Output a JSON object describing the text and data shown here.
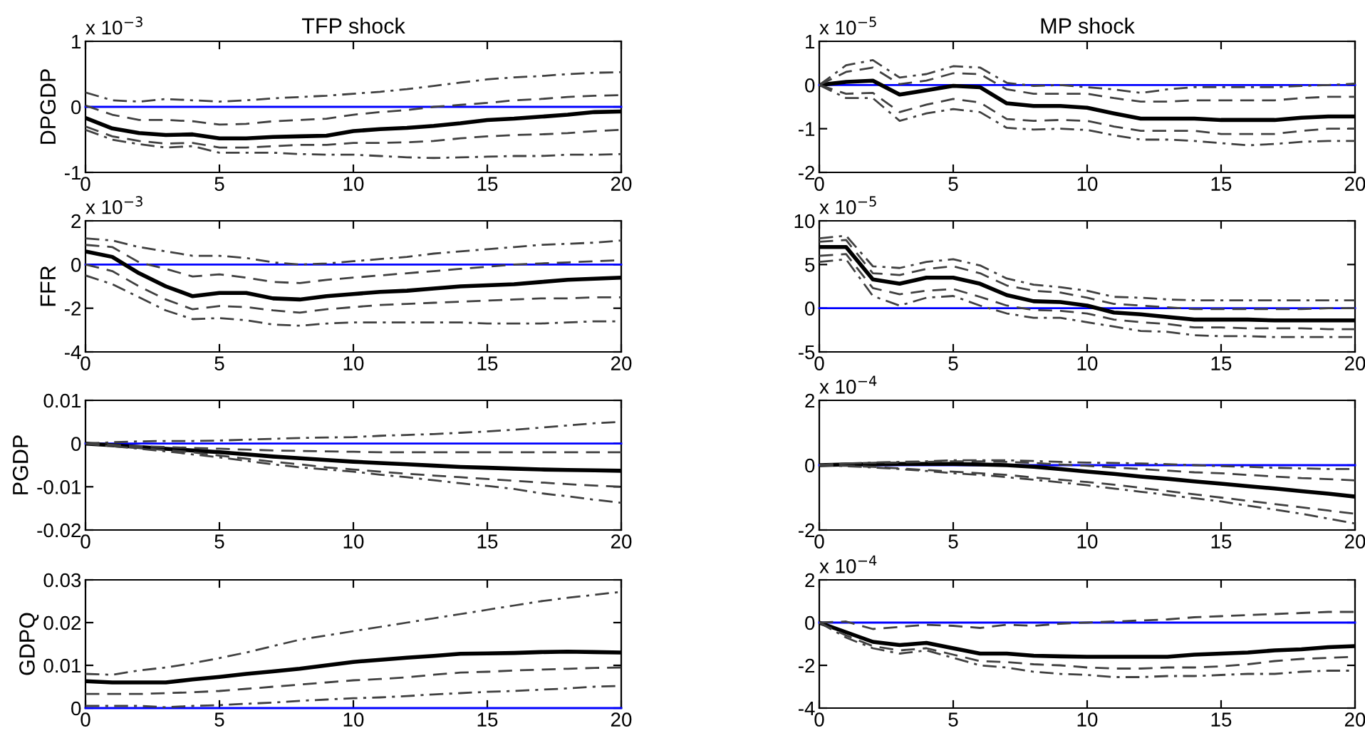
{
  "chart_data": [
    {
      "type": "line",
      "title": "TFP shock",
      "ylabel": "DPGDP",
      "annotations": [
        "x 10$^{−3}$"
      ],
      "x": [
        0,
        1,
        2,
        3,
        4,
        5,
        6,
        7,
        8,
        9,
        10,
        11,
        12,
        13,
        14,
        15,
        16,
        17,
        18,
        19,
        20
      ],
      "xlim": [
        0,
        20
      ],
      "xticks": [
        0,
        5,
        10,
        15,
        20
      ],
      "ylim": [
        -1,
        1
      ],
      "yticks": [
        -1,
        0,
        1
      ],
      "grid": false,
      "ref_lines": [
        {
          "axis": "y",
          "value": 0,
          "color": "#0000ff"
        }
      ],
      "series": [
        {
          "color": "#000000",
          "line_style": "solid",
          "values": [
            -0.17,
            -0.33,
            -0.4,
            -0.43,
            -0.42,
            -0.48,
            -0.48,
            -0.46,
            -0.45,
            -0.44,
            -0.37,
            -0.34,
            -0.32,
            -0.29,
            -0.25,
            -0.2,
            -0.18,
            -0.15,
            -0.12,
            -0.08,
            -0.07
          ]
        },
        {
          "color": "#404040",
          "line_style": "dashed",
          "values": [
            0.02,
            -0.12,
            -0.2,
            -0.2,
            -0.22,
            -0.27,
            -0.26,
            -0.22,
            -0.2,
            -0.18,
            -0.12,
            -0.08,
            -0.05,
            0.0,
            0.03,
            0.06,
            0.1,
            0.12,
            0.15,
            0.17,
            0.18
          ]
        },
        {
          "color": "#404040",
          "line_style": "dashed",
          "values": [
            -0.3,
            -0.45,
            -0.52,
            -0.56,
            -0.55,
            -0.62,
            -0.62,
            -0.6,
            -0.58,
            -0.58,
            -0.55,
            -0.55,
            -0.54,
            -0.52,
            -0.48,
            -0.45,
            -0.43,
            -0.42,
            -0.4,
            -0.37,
            -0.35
          ]
        },
        {
          "color": "#404040",
          "line_style": "dashdot",
          "values": [
            0.22,
            0.1,
            0.08,
            0.12,
            0.1,
            0.08,
            0.1,
            0.13,
            0.15,
            0.17,
            0.2,
            0.23,
            0.27,
            0.32,
            0.37,
            0.42,
            0.45,
            0.47,
            0.5,
            0.52,
            0.53
          ]
        },
        {
          "color": "#404040",
          "line_style": "dashdot",
          "values": [
            -0.35,
            -0.5,
            -0.57,
            -0.62,
            -0.6,
            -0.7,
            -0.7,
            -0.7,
            -0.72,
            -0.73,
            -0.73,
            -0.75,
            -0.77,
            -0.78,
            -0.77,
            -0.76,
            -0.75,
            -0.75,
            -0.73,
            -0.73,
            -0.72
          ]
        }
      ]
    },
    {
      "type": "line",
      "title": "MP shock",
      "annotations": [
        "x 10$^{−5}$"
      ],
      "x": [
        0,
        1,
        2,
        3,
        4,
        5,
        6,
        7,
        8,
        9,
        10,
        11,
        12,
        13,
        14,
        15,
        16,
        17,
        18,
        19,
        20
      ],
      "xlim": [
        0,
        20
      ],
      "xticks": [
        0,
        5,
        10,
        15,
        20
      ],
      "ylim": [
        -2,
        1
      ],
      "yticks": [
        -2,
        -1,
        0,
        1
      ],
      "grid": false,
      "ref_lines": [
        {
          "axis": "y",
          "value": 0,
          "color": "#0000ff"
        }
      ],
      "series": [
        {
          "color": "#000000",
          "line_style": "solid",
          "values": [
            0,
            0.07,
            0.1,
            -0.22,
            -0.12,
            -0.02,
            -0.05,
            -0.42,
            -0.48,
            -0.48,
            -0.52,
            -0.65,
            -0.77,
            -0.77,
            -0.77,
            -0.8,
            -0.8,
            -0.8,
            -0.75,
            -0.72,
            -0.72
          ]
        },
        {
          "color": "#404040",
          "line_style": "dashed",
          "values": [
            0,
            0.3,
            0.4,
            0.02,
            0.1,
            0.27,
            0.25,
            -0.1,
            -0.2,
            -0.2,
            -0.2,
            -0.3,
            -0.38,
            -0.38,
            -0.35,
            -0.35,
            -0.35,
            -0.35,
            -0.3,
            -0.27,
            -0.27
          ]
        },
        {
          "color": "#404040",
          "line_style": "dashed",
          "values": [
            0,
            -0.2,
            -0.18,
            -0.62,
            -0.45,
            -0.32,
            -0.4,
            -0.78,
            -0.82,
            -0.8,
            -0.82,
            -0.95,
            -1.05,
            -1.05,
            -1.05,
            -1.12,
            -1.12,
            -1.12,
            -1.05,
            -1.0,
            -1.0
          ]
        },
        {
          "color": "#404040",
          "line_style": "dashdot",
          "values": [
            0,
            0.45,
            0.57,
            0.17,
            0.25,
            0.43,
            0.4,
            0.05,
            -0.02,
            0.0,
            -0.05,
            -0.1,
            -0.18,
            -0.1,
            -0.05,
            -0.05,
            -0.05,
            -0.05,
            -0.02,
            0.0,
            0.03
          ]
        },
        {
          "color": "#404040",
          "line_style": "dashdot",
          "values": [
            0,
            -0.3,
            -0.3,
            -0.82,
            -0.65,
            -0.55,
            -0.62,
            -0.98,
            -1.02,
            -1.0,
            -1.03,
            -1.15,
            -1.25,
            -1.25,
            -1.28,
            -1.33,
            -1.38,
            -1.35,
            -1.3,
            -1.28,
            -1.28
          ]
        }
      ]
    },
    {
      "type": "line",
      "ylabel": "FFR",
      "annotations": [
        "x 10$^{−3}$"
      ],
      "x": [
        0,
        1,
        2,
        3,
        4,
        5,
        6,
        7,
        8,
        9,
        10,
        11,
        12,
        13,
        14,
        15,
        16,
        17,
        18,
        19,
        20
      ],
      "xlim": [
        0,
        20
      ],
      "xticks": [
        0,
        5,
        10,
        15,
        20
      ],
      "ylim": [
        -4,
        2
      ],
      "yticks": [
        -4,
        -2,
        0,
        2
      ],
      "grid": false,
      "ref_lines": [
        {
          "axis": "y",
          "value": 0,
          "color": "#0000ff"
        }
      ],
      "series": [
        {
          "color": "#000000",
          "line_style": "solid",
          "values": [
            0.6,
            0.35,
            -0.4,
            -1.0,
            -1.45,
            -1.3,
            -1.3,
            -1.55,
            -1.6,
            -1.45,
            -1.35,
            -1.25,
            -1.2,
            -1.1,
            -1.0,
            -0.95,
            -0.9,
            -0.8,
            -0.7,
            -0.65,
            -0.6
          ]
        },
        {
          "color": "#404040",
          "line_style": "dashed",
          "values": [
            0.9,
            0.8,
            0.1,
            -0.2,
            -0.55,
            -0.45,
            -0.6,
            -0.8,
            -0.85,
            -0.7,
            -0.6,
            -0.5,
            -0.4,
            -0.3,
            -0.2,
            -0.1,
            0.0,
            0.05,
            0.1,
            0.15,
            0.2
          ]
        },
        {
          "color": "#404040",
          "line_style": "dashed",
          "values": [
            0.0,
            -0.3,
            -1.0,
            -1.6,
            -2.05,
            -1.9,
            -1.95,
            -2.1,
            -2.2,
            -2.05,
            -1.95,
            -1.85,
            -1.8,
            -1.75,
            -1.7,
            -1.65,
            -1.6,
            -1.55,
            -1.55,
            -1.5,
            -1.5
          ]
        },
        {
          "color": "#404040",
          "line_style": "dashdot",
          "values": [
            1.2,
            1.1,
            0.8,
            0.6,
            0.4,
            0.4,
            0.3,
            0.1,
            0.0,
            0.05,
            0.15,
            0.25,
            0.35,
            0.5,
            0.6,
            0.7,
            0.8,
            0.9,
            0.95,
            1.0,
            1.1
          ]
        },
        {
          "color": "#404040",
          "line_style": "dashdot",
          "values": [
            -0.5,
            -0.9,
            -1.5,
            -2.1,
            -2.5,
            -2.45,
            -2.55,
            -2.75,
            -2.8,
            -2.7,
            -2.65,
            -2.65,
            -2.65,
            -2.65,
            -2.65,
            -2.7,
            -2.7,
            -2.7,
            -2.65,
            -2.6,
            -2.6
          ]
        }
      ]
    },
    {
      "type": "line",
      "annotations": [
        "x 10$^{−5}$"
      ],
      "x": [
        0,
        1,
        2,
        3,
        4,
        5,
        6,
        7,
        8,
        9,
        10,
        11,
        12,
        13,
        14,
        15,
        16,
        17,
        18,
        19,
        20
      ],
      "xlim": [
        0,
        20
      ],
      "xticks": [
        0,
        5,
        10,
        15,
        20
      ],
      "ylim": [
        -5,
        10
      ],
      "yticks": [
        -5,
        0,
        5,
        10
      ],
      "grid": false,
      "ref_lines": [
        {
          "axis": "y",
          "value": 0,
          "color": "#0000ff"
        }
      ],
      "series": [
        {
          "color": "#000000",
          "line_style": "solid",
          "values": [
            7,
            7,
            3.3,
            2.8,
            3.5,
            3.5,
            2.8,
            1.5,
            0.8,
            0.7,
            0.3,
            -0.5,
            -0.7,
            -1.0,
            -1.3,
            -1.3,
            -1.3,
            -1.4,
            -1.4,
            -1.4,
            -1.4
          ]
        },
        {
          "color": "#404040",
          "line_style": "dashed",
          "values": [
            7.6,
            7.8,
            4.0,
            3.8,
            4.5,
            4.8,
            4.0,
            2.6,
            2.0,
            1.8,
            1.2,
            0.5,
            0.3,
            0.1,
            -0.1,
            -0.1,
            -0.1,
            -0.1,
            -0.1,
            0.0,
            0.0
          ]
        },
        {
          "color": "#404040",
          "line_style": "dashed",
          "values": [
            6.0,
            6.2,
            2.3,
            1.6,
            2.0,
            2.2,
            1.3,
            0.3,
            -0.2,
            -0.3,
            -0.6,
            -1.3,
            -1.6,
            -1.8,
            -2.2,
            -2.2,
            -2.3,
            -2.3,
            -2.3,
            -2.4,
            -2.4
          ]
        },
        {
          "color": "#404040",
          "line_style": "dashdot",
          "values": [
            8.0,
            8.3,
            4.8,
            4.6,
            5.3,
            5.6,
            4.9,
            3.4,
            2.7,
            2.4,
            2.0,
            1.3,
            1.2,
            1.0,
            0.9,
            0.9,
            0.9,
            0.9,
            0.9,
            0.9,
            0.9
          ]
        },
        {
          "color": "#404040",
          "line_style": "dashdot",
          "values": [
            5.3,
            5.6,
            1.4,
            0.3,
            1.2,
            1.4,
            0.3,
            -0.6,
            -1.1,
            -1.1,
            -1.6,
            -2.1,
            -2.6,
            -2.7,
            -3.1,
            -3.2,
            -3.2,
            -3.3,
            -3.3,
            -3.3,
            -3.3
          ]
        }
      ]
    },
    {
      "type": "line",
      "ylabel": "PGDP",
      "x": [
        0,
        1,
        2,
        3,
        4,
        5,
        6,
        7,
        8,
        9,
        10,
        11,
        12,
        13,
        14,
        15,
        16,
        17,
        18,
        19,
        20
      ],
      "xlim": [
        0,
        20
      ],
      "xticks": [
        0,
        5,
        10,
        15,
        20
      ],
      "ylim": [
        -0.02,
        0.01
      ],
      "yticks": [
        -0.02,
        -0.01,
        0,
        0.01
      ],
      "grid": false,
      "ref_lines": [
        {
          "axis": "y",
          "value": 0,
          "color": "#0000ff"
        }
      ],
      "series": [
        {
          "color": "#000000",
          "line_style": "solid",
          "values": [
            0,
            -0.0004,
            -0.0008,
            -0.0012,
            -0.0016,
            -0.002,
            -0.0025,
            -0.003,
            -0.0034,
            -0.0038,
            -0.0042,
            -0.0045,
            -0.0048,
            -0.0051,
            -0.0054,
            -0.0056,
            -0.0058,
            -0.006,
            -0.0061,
            -0.0062,
            -0.0063
          ]
        },
        {
          "color": "#404040",
          "line_style": "dashed",
          "values": [
            0,
            -0.0003,
            -0.0006,
            -0.0008,
            -0.001,
            -0.0012,
            -0.0014,
            -0.0016,
            -0.0017,
            -0.0018,
            -0.0019,
            -0.002,
            -0.002,
            -0.002,
            -0.002,
            -0.002,
            -0.002,
            -0.002,
            -0.002,
            -0.002,
            -0.002
          ]
        },
        {
          "color": "#404040",
          "line_style": "dashed",
          "values": [
            0,
            -0.0005,
            -0.001,
            -0.0015,
            -0.002,
            -0.0028,
            -0.0035,
            -0.0042,
            -0.0048,
            -0.0055,
            -0.006,
            -0.0065,
            -0.007,
            -0.0074,
            -0.0078,
            -0.0082,
            -0.0086,
            -0.009,
            -0.0094,
            -0.0097,
            -0.01
          ]
        },
        {
          "color": "#404040",
          "line_style": "dashdot",
          "values": [
            0,
            0.0003,
            0.0005,
            0.0006,
            0.0006,
            0.0007,
            0.0009,
            0.0011,
            0.0013,
            0.0014,
            0.0015,
            0.0018,
            0.002,
            0.0022,
            0.0025,
            0.0028,
            0.0032,
            0.0037,
            0.0042,
            0.0047,
            0.005
          ]
        },
        {
          "color": "#404040",
          "line_style": "dashdot",
          "values": [
            0,
            -0.0006,
            -0.0012,
            -0.0018,
            -0.0025,
            -0.0032,
            -0.004,
            -0.0048,
            -0.0055,
            -0.006,
            -0.0065,
            -0.0072,
            -0.0078,
            -0.0085,
            -0.0092,
            -0.0098,
            -0.0105,
            -0.0115,
            -0.0122,
            -0.013,
            -0.0137
          ]
        }
      ]
    },
    {
      "type": "line",
      "annotations": [
        "x 10$^{−4}$"
      ],
      "x": [
        0,
        1,
        2,
        3,
        4,
        5,
        6,
        7,
        8,
        9,
        10,
        11,
        12,
        13,
        14,
        15,
        16,
        17,
        18,
        19,
        20
      ],
      "xlim": [
        0,
        20
      ],
      "xticks": [
        0,
        5,
        10,
        15,
        20
      ],
      "ylim": [
        -2,
        2
      ],
      "yticks": [
        -2,
        0,
        2
      ],
      "grid": false,
      "ref_lines": [
        {
          "axis": "y",
          "value": 0,
          "color": "#0000ff"
        }
      ],
      "series": [
        {
          "color": "#000000",
          "line_style": "solid",
          "values": [
            0,
            0.02,
            0.03,
            0.04,
            0.04,
            0.04,
            0.02,
            0.0,
            -0.05,
            -0.12,
            -0.2,
            -0.27,
            -0.35,
            -0.42,
            -0.5,
            -0.57,
            -0.65,
            -0.72,
            -0.8,
            -0.88,
            -0.97
          ]
        },
        {
          "color": "#404040",
          "line_style": "dashed",
          "values": [
            0,
            0.05,
            0.07,
            0.08,
            0.1,
            0.12,
            0.12,
            0.1,
            0.07,
            0.02,
            -0.02,
            -0.07,
            -0.12,
            -0.17,
            -0.22,
            -0.25,
            -0.3,
            -0.35,
            -0.4,
            -0.43,
            -0.47
          ]
        },
        {
          "color": "#404040",
          "line_style": "dashed",
          "values": [
            0,
            -0.02,
            -0.05,
            -0.1,
            -0.15,
            -0.2,
            -0.25,
            -0.3,
            -0.38,
            -0.45,
            -0.52,
            -0.6,
            -0.7,
            -0.8,
            -0.9,
            -1.0,
            -1.1,
            -1.2,
            -1.3,
            -1.4,
            -1.5
          ]
        },
        {
          "color": "#404040",
          "line_style": "dashdot",
          "values": [
            0,
            0.05,
            0.08,
            0.1,
            0.12,
            0.15,
            0.15,
            0.15,
            0.13,
            0.1,
            0.08,
            0.07,
            0.05,
            0.03,
            0.0,
            -0.03,
            -0.05,
            -0.08,
            -0.1,
            -0.12,
            -0.12
          ]
        },
        {
          "color": "#404040",
          "line_style": "dashdot",
          "values": [
            0,
            -0.03,
            -0.07,
            -0.12,
            -0.18,
            -0.25,
            -0.3,
            -0.37,
            -0.45,
            -0.53,
            -0.62,
            -0.72,
            -0.82,
            -0.92,
            -1.02,
            -1.12,
            -1.25,
            -1.37,
            -1.5,
            -1.65,
            -1.8
          ]
        }
      ]
    },
    {
      "type": "line",
      "ylabel": "GDPQ",
      "x": [
        0,
        1,
        2,
        3,
        4,
        5,
        6,
        7,
        8,
        9,
        10,
        11,
        12,
        13,
        14,
        15,
        16,
        17,
        18,
        19,
        20
      ],
      "xlim": [
        0,
        20
      ],
      "xticks": [
        0,
        5,
        10,
        15,
        20
      ],
      "ylim": [
        0,
        0.03
      ],
      "yticks": [
        0,
        0.01,
        0.02,
        0.03
      ],
      "grid": false,
      "ref_lines": [
        {
          "axis": "y",
          "value": 0,
          "color": "#0000ff"
        }
      ],
      "series": [
        {
          "color": "#000000",
          "line_style": "solid",
          "values": [
            0.0063,
            0.006,
            0.006,
            0.006,
            0.0067,
            0.0073,
            0.008,
            0.0086,
            0.0092,
            0.01,
            0.0108,
            0.0113,
            0.0118,
            0.0122,
            0.0127,
            0.0128,
            0.0129,
            0.0131,
            0.0132,
            0.0131,
            0.013
          ]
        },
        {
          "color": "#404040",
          "line_style": "dashdot",
          "values": [
            0.008,
            0.0078,
            0.0088,
            0.0095,
            0.0105,
            0.0117,
            0.013,
            0.0145,
            0.016,
            0.017,
            0.018,
            0.019,
            0.02,
            0.021,
            0.022,
            0.023,
            0.024,
            0.025,
            0.0258,
            0.0265,
            0.0272
          ]
        },
        {
          "color": "#404040",
          "line_style": "dashed",
          "values": [
            0.0033,
            0.0033,
            0.0033,
            0.0035,
            0.0037,
            0.004,
            0.0045,
            0.005,
            0.0055,
            0.006,
            0.0065,
            0.0068,
            0.0072,
            0.0078,
            0.0083,
            0.0085,
            0.0088,
            0.009,
            0.0092,
            0.0094,
            0.0095
          ]
        },
        {
          "color": "#404040",
          "line_style": "dashdot",
          "values": [
            0.0005,
            0.0005,
            0.0005,
            0.0002,
            0.0005,
            0.0007,
            0.001,
            0.0013,
            0.0017,
            0.002,
            0.0023,
            0.0025,
            0.0028,
            0.0032,
            0.0035,
            0.0038,
            0.004,
            0.0043,
            0.0046,
            0.005,
            0.0052
          ]
        }
      ]
    },
    {
      "type": "line",
      "annotations": [
        "x 10$^{−4}$"
      ],
      "x": [
        0,
        1,
        2,
        3,
        4,
        5,
        6,
        7,
        8,
        9,
        10,
        11,
        12,
        13,
        14,
        15,
        16,
        17,
        18,
        19,
        20
      ],
      "xlim": [
        0,
        20
      ],
      "xticks": [
        0,
        5,
        10,
        15,
        20
      ],
      "ylim": [
        -4,
        2
      ],
      "yticks": [
        -4,
        -2,
        0,
        2
      ],
      "grid": false,
      "ref_lines": [
        {
          "axis": "y",
          "value": 0,
          "color": "#0000ff"
        }
      ],
      "series": [
        {
          "color": "#000000",
          "line_style": "solid",
          "values": [
            0,
            -0.45,
            -0.9,
            -1.05,
            -0.95,
            -1.2,
            -1.45,
            -1.45,
            -1.55,
            -1.58,
            -1.6,
            -1.6,
            -1.6,
            -1.6,
            -1.5,
            -1.45,
            -1.4,
            -1.3,
            -1.25,
            -1.15,
            -1.1
          ]
        },
        {
          "color": "#404040",
          "line_style": "dashed",
          "values": [
            0,
            0.05,
            -0.3,
            -0.2,
            -0.1,
            -0.15,
            -0.25,
            -0.1,
            -0.15,
            -0.05,
            0.0,
            0.05,
            0.1,
            0.15,
            0.25,
            0.3,
            0.35,
            0.4,
            0.45,
            0.5,
            0.5
          ]
        },
        {
          "color": "#404040",
          "line_style": "dashed",
          "values": [
            0,
            -0.6,
            -1.1,
            -1.3,
            -1.2,
            -1.5,
            -1.8,
            -1.85,
            -1.95,
            -2.0,
            -2.1,
            -2.15,
            -2.15,
            -2.1,
            -2.1,
            -2.05,
            -1.95,
            -1.8,
            -1.7,
            -1.65,
            -1.6
          ]
        },
        {
          "color": "#404040",
          "line_style": "dashdot",
          "values": [
            0,
            -0.7,
            -1.2,
            -1.45,
            -1.3,
            -1.65,
            -2.0,
            -2.1,
            -2.3,
            -2.4,
            -2.45,
            -2.55,
            -2.55,
            -2.5,
            -2.5,
            -2.45,
            -2.4,
            -2.4,
            -2.3,
            -2.25,
            -2.25
          ]
        }
      ]
    }
  ]
}
